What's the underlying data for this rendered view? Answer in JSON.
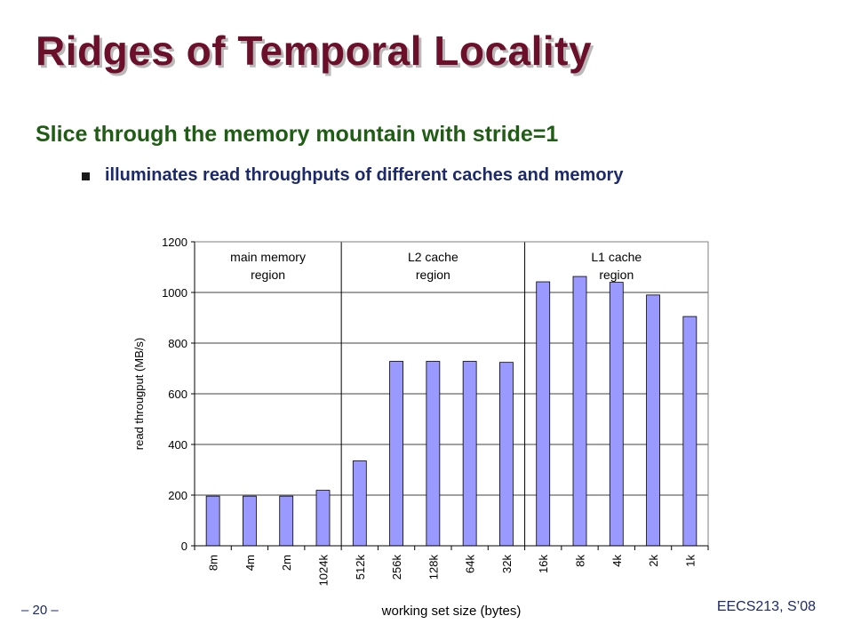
{
  "slide": {
    "title": "Ridges of Temporal Locality",
    "subtitle": "Slice through the memory mountain with stride=1",
    "bullet": "illuminates read throughputs of different caches and memory",
    "footer_left": "– 20 –",
    "footer_right": "EECS213, S’08"
  },
  "colors": {
    "title": "#6b0f2b",
    "subtitle": "#1f5c14",
    "body_text": "#1c2a6b",
    "bar_fill": "#9999ff",
    "bar_stroke": "#000000"
  },
  "chart_data": {
    "type": "bar",
    "categories": [
      "8m",
      "4m",
      "2m",
      "1024k",
      "512k",
      "256k",
      "128k",
      "64k",
      "32k",
      "16k",
      "8k",
      "4k",
      "2k",
      "1k"
    ],
    "values": [
      196,
      196,
      196,
      219,
      335,
      728,
      728,
      728,
      724,
      1042,
      1063,
      1040,
      990,
      905
    ],
    "xlabel": "working set size (bytes)",
    "ylabel": "read througput (MB/s)",
    "ylim": [
      0,
      1200
    ],
    "yticks": [
      0,
      200,
      400,
      600,
      800,
      1000,
      1200
    ],
    "grid": true,
    "regions": [
      {
        "label_line1": "main memory",
        "label_line2": "region",
        "first_category": "8m",
        "last_category": "1024k"
      },
      {
        "label_line1": "L2 cache",
        "label_line2": "region",
        "first_category": "512k",
        "last_category": "32k"
      },
      {
        "label_line1": "L1 cache",
        "label_line2": "region",
        "first_category": "16k",
        "last_category": "1k"
      }
    ]
  }
}
